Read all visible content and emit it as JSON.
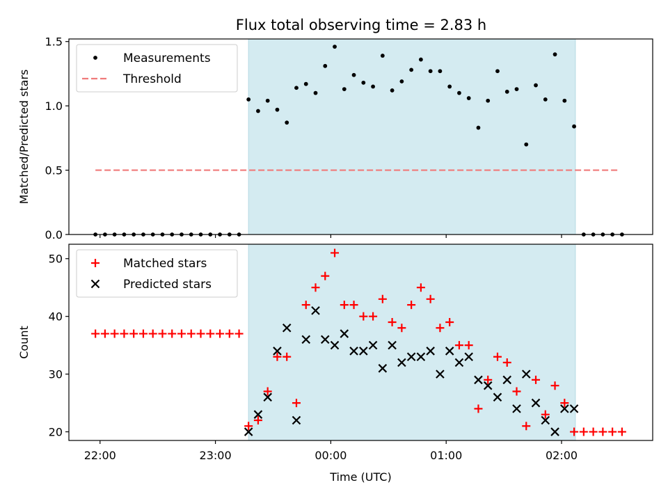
{
  "title": "Flux total observing time = 2.83 h",
  "colors": {
    "observing_band": "#d4ebf1",
    "band_edge": "#b5d9e3",
    "measurement": "#000000",
    "threshold": "#f07a7a",
    "matched": "#ff0000",
    "predicted": "#000000"
  },
  "chart_data": [
    {
      "type": "scatter",
      "panel": "top",
      "ylabel": "Matched/Predicted stars",
      "xlabel": "",
      "ylim": [
        0,
        1.52
      ],
      "xlim": [
        -0.27,
        4.79
      ],
      "x_unit": "hours after 22:00 UTC",
      "yticks": [
        0.0,
        0.5,
        1.0,
        1.5
      ],
      "ytick_labels": [
        "0.0",
        "0.5",
        "1.0",
        "1.5"
      ],
      "xticks": [
        0,
        1,
        2,
        3,
        4
      ],
      "legend_position": "top-left",
      "legend": [
        "Measurements",
        "Threshold"
      ],
      "observing_window": [
        1.287,
        4.12
      ],
      "threshold": {
        "name": "Threshold",
        "y": 0.5,
        "x_range": [
          -0.04,
          4.5
        ]
      },
      "series": [
        {
          "name": "Measurements",
          "marker": "dot",
          "x": [
            -0.04,
            0.043,
            0.126,
            0.209,
            0.292,
            0.375,
            0.458,
            0.541,
            0.624,
            0.707,
            0.79,
            0.873,
            0.956,
            1.039,
            1.122,
            1.205,
            1.287,
            1.37,
            1.453,
            1.536,
            1.619,
            1.702,
            1.785,
            1.868,
            1.951,
            2.034,
            2.117,
            2.2,
            2.283,
            2.366,
            2.449,
            2.532,
            2.615,
            2.698,
            2.781,
            2.864,
            2.947,
            3.03,
            3.113,
            3.196,
            3.279,
            3.362,
            3.445,
            3.528,
            3.611,
            3.694,
            3.777,
            3.86,
            3.943,
            4.026,
            4.109,
            4.192,
            4.275,
            4.358,
            4.441,
            4.524
          ],
          "y": [
            0,
            0,
            0,
            0,
            0,
            0,
            0,
            0,
            0,
            0,
            0,
            0,
            0,
            0,
            0,
            0,
            1.05,
            0.96,
            1.04,
            0.97,
            0.87,
            1.14,
            1.17,
            1.1,
            1.31,
            1.46,
            1.13,
            1.24,
            1.18,
            1.15,
            1.39,
            1.12,
            1.19,
            1.28,
            1.36,
            1.27,
            1.27,
            1.15,
            1.1,
            1.06,
            0.83,
            1.04,
            1.27,
            1.11,
            1.13,
            0.7,
            1.16,
            1.05,
            1.4,
            1.04,
            0.84,
            0,
            0,
            0,
            0,
            0
          ]
        }
      ]
    },
    {
      "type": "scatter",
      "panel": "bottom",
      "ylabel": "Count",
      "xlabel": "Time (UTC)",
      "ylim": [
        18.5,
        52.5
      ],
      "xlim": [
        -0.27,
        4.79
      ],
      "x_unit": "hours after 22:00 UTC",
      "yticks": [
        20,
        30,
        40,
        50
      ],
      "ytick_labels": [
        "20",
        "30",
        "40",
        "50"
      ],
      "xticks": [
        0,
        1,
        2,
        3,
        4
      ],
      "xtick_labels": [
        "22:00",
        "23:00",
        "00:00",
        "01:00",
        "02:00"
      ],
      "legend_position": "top-left",
      "legend": [
        "Matched stars",
        "Predicted stars"
      ],
      "observing_window": [
        1.287,
        4.12
      ],
      "series": [
        {
          "name": "Matched stars",
          "marker": "plus",
          "x": [
            -0.04,
            0.043,
            0.126,
            0.209,
            0.292,
            0.375,
            0.458,
            0.541,
            0.624,
            0.707,
            0.79,
            0.873,
            0.956,
            1.039,
            1.122,
            1.205,
            1.287,
            1.37,
            1.453,
            1.536,
            1.619,
            1.702,
            1.785,
            1.868,
            1.951,
            2.034,
            2.117,
            2.2,
            2.283,
            2.366,
            2.449,
            2.532,
            2.615,
            2.698,
            2.781,
            2.864,
            2.947,
            3.03,
            3.113,
            3.196,
            3.279,
            3.362,
            3.445,
            3.528,
            3.611,
            3.694,
            3.777,
            3.86,
            3.943,
            4.026,
            4.109,
            4.192,
            4.275,
            4.358,
            4.441,
            4.524
          ],
          "y": [
            37,
            37,
            37,
            37,
            37,
            37,
            37,
            37,
            37,
            37,
            37,
            37,
            37,
            37,
            37,
            37,
            21,
            22,
            27,
            33,
            33,
            25,
            42,
            45,
            47,
            51,
            42,
            42,
            40,
            40,
            43,
            39,
            38,
            42,
            45,
            43,
            38,
            39,
            35,
            35,
            24,
            29,
            33,
            32,
            27,
            21,
            29,
            23,
            28,
            25,
            20,
            20,
            20,
            20,
            20,
            20
          ]
        },
        {
          "name": "Predicted stars",
          "marker": "x",
          "x": [
            1.287,
            1.37,
            1.453,
            1.536,
            1.619,
            1.702,
            1.785,
            1.868,
            1.951,
            2.034,
            2.117,
            2.2,
            2.283,
            2.366,
            2.449,
            2.532,
            2.615,
            2.698,
            2.781,
            2.864,
            2.947,
            3.03,
            3.113,
            3.196,
            3.279,
            3.362,
            3.445,
            3.528,
            3.611,
            3.694,
            3.777,
            3.86,
            3.943,
            4.026,
            4.109
          ],
          "y": [
            20,
            23,
            26,
            34,
            38,
            22,
            36,
            41,
            36,
            35,
            37,
            34,
            34,
            35,
            31,
            35,
            32,
            33,
            33,
            34,
            30,
            34,
            32,
            33,
            29,
            28,
            26,
            29,
            24,
            30,
            25,
            22,
            20,
            24,
            24
          ]
        }
      ]
    }
  ]
}
